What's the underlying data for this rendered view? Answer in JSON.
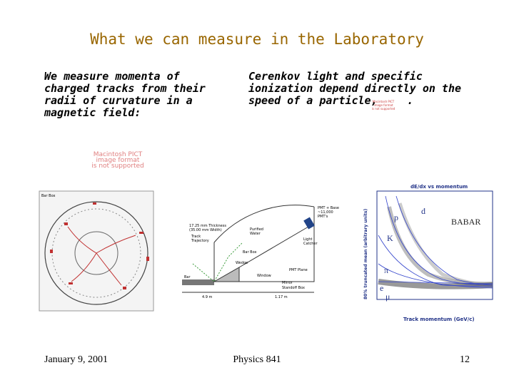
{
  "title": "What we can measure in the Laboratory",
  "left_text": [
    "We measure momenta of",
    "charged tracks from their",
    "radii of curvature in a",
    "magnetic field:"
  ],
  "right_text": [
    "Cerenkov light and specific",
    "ionization depend directly on the",
    "speed of a particle, ",
    "."
  ],
  "placeholder_large": [
    "Macintosh PICT",
    "image format",
    "is not supported"
  ],
  "placeholder_small": [
    "Macintosh PICT",
    "image format",
    "is not supported"
  ],
  "event_display": {
    "label": "Bar Box"
  },
  "dirc": {
    "labels": [
      "PMT + Base",
      "~11,000",
      "PMT's",
      "Purified",
      "Water",
      "Light",
      "Catcher",
      "PMT Plane",
      "Bar Box",
      "Track",
      "Trajectory",
      "Wedge",
      "Mirror",
      "Bar",
      "Window",
      "Standoff Box",
      "17.25 mm Thickness",
      "(35.00 mm Width)",
      "4.9 m",
      "1.17 m"
    ]
  },
  "dedx_plot": {
    "title": "dE/dx vs momentum",
    "brand": "BABAR",
    "particles": [
      "p",
      "d",
      "K",
      "π",
      "e",
      "μ"
    ],
    "x_label": "Track momentum (GeV/c)",
    "y_label": "80% truncated mean (arbitrary units)"
  },
  "footer": {
    "date": "January 9, 2001",
    "course": "Physics 841",
    "page": "12"
  }
}
